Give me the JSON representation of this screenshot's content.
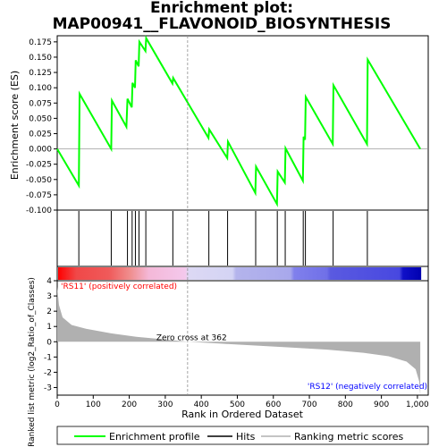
{
  "chart_data": {
    "type": "line",
    "title_line1": "Enrichment plot:",
    "title_line2": "MAP00941__FLAVONOID_BIOSYNTHESIS",
    "es_panel": {
      "ylabel": "Enrichment score (ES)",
      "ylim": [
        -0.1,
        0.185
      ],
      "yticks": [
        "0.175",
        "0.150",
        "0.125",
        "0.100",
        "0.075",
        "0.050",
        "0.025",
        "0.000",
        "-0.025",
        "-0.050",
        "-0.075",
        "-0.100"
      ],
      "ytick_values": [
        0.175,
        0.15,
        0.125,
        0.1,
        0.075,
        0.05,
        0.025,
        0.0,
        -0.025,
        -0.05,
        -0.075,
        -0.1
      ],
      "series": {
        "name": "Enrichment profile",
        "color": "#00ff00",
        "x": [
          0,
          60,
          62,
          150,
          152,
          192,
          195,
          207,
          209,
          216,
          218,
          226,
          228,
          245,
          247,
          320,
          322,
          420,
          422,
          472,
          474,
          550,
          552,
          610,
          612,
          632,
          634,
          682,
          684,
          688,
          690,
          765,
          767,
          860,
          862,
          1008
        ],
        "y": [
          0.0,
          -0.06,
          0.09,
          0.0,
          0.079,
          0.036,
          0.082,
          0.068,
          0.108,
          0.1,
          0.145,
          0.135,
          0.175,
          0.16,
          0.181,
          0.107,
          0.116,
          0.018,
          0.032,
          -0.015,
          0.012,
          -0.072,
          -0.029,
          -0.09,
          -0.037,
          -0.055,
          0.001,
          -0.052,
          0.02,
          0.015,
          0.085,
          0.008,
          0.104,
          0.008,
          0.146,
          0.0
        ]
      }
    },
    "hits": [
      60,
      150,
      195,
      208,
      217,
      227,
      246,
      321,
      421,
      473,
      551,
      611,
      633,
      683,
      689,
      766,
      861
    ],
    "ranking_panel": {
      "ylabel": "Ranked list metric (log2_Ratio_of_Classes)",
      "ylim": [
        -3.5,
        4
      ],
      "yticks": [
        "4",
        "3",
        "2",
        "1",
        "0",
        "-1",
        "-2",
        "-3"
      ],
      "ytick_values": [
        4,
        3,
        2,
        1,
        0,
        -1,
        -2,
        -3
      ],
      "label_pos": "'RS11' (positively correlated)",
      "label_neg": "'RS12' (negatively correlated)",
      "zero_cross": "Zero cross at 362",
      "zero_cross_rank": 362,
      "metric_points": [
        [
          0,
          3.6
        ],
        [
          5,
          2.4
        ],
        [
          15,
          1.6
        ],
        [
          40,
          1.1
        ],
        [
          80,
          0.85
        ],
        [
          150,
          0.55
        ],
        [
          220,
          0.32
        ],
        [
          300,
          0.15
        ],
        [
          362,
          0.0
        ],
        [
          450,
          -0.12
        ],
        [
          550,
          -0.25
        ],
        [
          650,
          -0.38
        ],
        [
          750,
          -0.52
        ],
        [
          850,
          -0.72
        ],
        [
          920,
          -0.95
        ],
        [
          970,
          -1.3
        ],
        [
          995,
          -1.8
        ],
        [
          1005,
          -2.6
        ],
        [
          1008,
          -3.5
        ]
      ]
    },
    "xaxis": {
      "xlabel": "Rank in Ordered Dataset",
      "xlim": [
        0,
        1030
      ],
      "xticks": [
        "0",
        "100",
        "200",
        "300",
        "400",
        "500",
        "600",
        "700",
        "800",
        "900",
        "1,000"
      ],
      "xtick_values": [
        0,
        100,
        200,
        300,
        400,
        500,
        600,
        700,
        800,
        900,
        1000
      ]
    },
    "legend": {
      "items": [
        {
          "label": "Enrichment profile",
          "color": "#00ff00"
        },
        {
          "label": "Hits",
          "color": "#000000"
        },
        {
          "label": "Ranking metric scores",
          "color": "#b0b0b0"
        }
      ]
    },
    "colors": {
      "enrichment": "#00ff00",
      "hits": "#000000",
      "metric_fill": "#b0b0b0",
      "pos_label": "#ff0000",
      "neg_label": "#0000ff",
      "zero_line": "#808080"
    }
  }
}
